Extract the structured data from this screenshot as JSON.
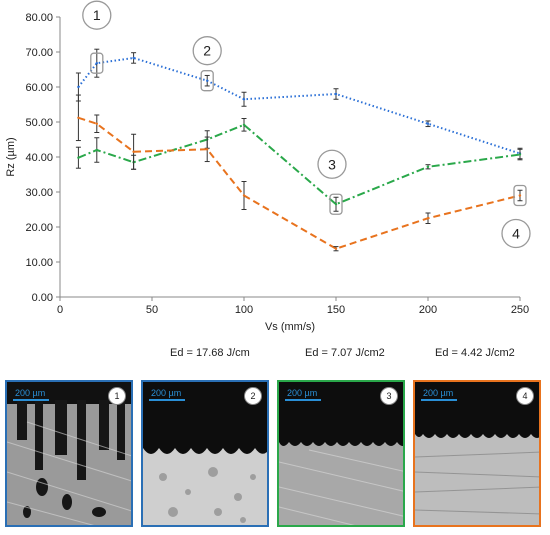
{
  "chart_data": {
    "type": "line",
    "title": "",
    "xlabel": "Vs (mm/s)",
    "ylabel": "Rz (µm)",
    "xlim": [
      0,
      250
    ],
    "ylim": [
      0,
      80
    ],
    "x_ticks": [
      "0",
      "50",
      "100",
      "150",
      "200",
      "250"
    ],
    "y_ticks": [
      "0.00",
      "10.00",
      "20.00",
      "30.00",
      "40.00",
      "50.00",
      "60.00",
      "70.00",
      "80.00"
    ],
    "grid": false,
    "legend_position": "bottom",
    "series": [
      {
        "name": "Ed = 17.68 J/cm",
        "color": "#2a6fd6",
        "style": "dotted",
        "x": [
          10,
          20,
          40,
          80,
          100,
          150,
          200,
          250
        ],
        "y": [
          60.0,
          66.8,
          68.3,
          61.8,
          56.5,
          58.0,
          49.5,
          41.0
        ],
        "err": [
          4.0,
          4.0,
          1.5,
          1.5,
          2.0,
          1.5,
          0.8,
          1.5
        ]
      },
      {
        "name": "Ed = 7.07 J/cm2",
        "color": "#2aa84a",
        "style": "dashdot",
        "x": [
          10,
          20,
          40,
          80,
          100,
          150,
          200,
          250
        ],
        "y": [
          39.8,
          42.0,
          38.5,
          45.0,
          49.2,
          26.5,
          37.2,
          40.7
        ],
        "err": [
          3.0,
          3.5,
          2.0,
          2.5,
          1.8,
          2.0,
          0.6,
          1.5
        ]
      },
      {
        "name": "Ed = 4.42 J/cm2",
        "color": "#e8731e",
        "style": "dashed",
        "x": [
          10,
          20,
          40,
          80,
          100,
          150,
          200,
          250
        ],
        "y": [
          51.2,
          49.5,
          41.5,
          42.2,
          29.0,
          13.8,
          22.5,
          29.0
        ],
        "err": [
          6.5,
          2.5,
          5.0,
          3.5,
          4.0,
          0.6,
          1.5,
          1.5
        ]
      }
    ],
    "callouts": [
      {
        "label": "1",
        "x": 20,
        "y": 66.8
      },
      {
        "label": "2",
        "x": 80,
        "y": 61.8
      },
      {
        "label": "3",
        "x": 150,
        "y": 26.5
      },
      {
        "label": "4",
        "x": 250,
        "y": 29.0
      }
    ]
  },
  "panels": [
    {
      "label": "1",
      "scale": "200 µm",
      "border": "#2a6fb5"
    },
    {
      "label": "2",
      "scale": "200 µm",
      "border": "#2a6fb5"
    },
    {
      "label": "3",
      "scale": "200 µm",
      "border": "#2aa84a"
    },
    {
      "label": "4",
      "scale": "200 µm",
      "border": "#e8731e"
    }
  ]
}
